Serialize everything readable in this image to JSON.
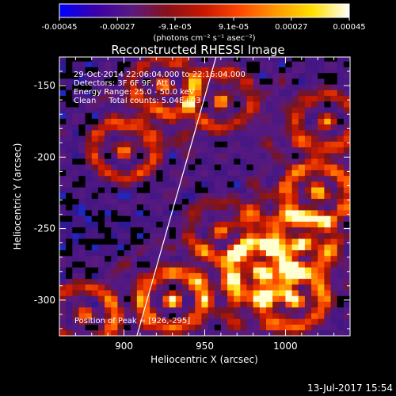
{
  "chart_data": {
    "type": "heatmap",
    "title": "Reconstructed RHESSI Image",
    "xlabel": "Heliocentric X (arcsec)",
    "ylabel": "Heliocentric Y (arcsec)",
    "xlim": [
      860,
      1040
    ],
    "ylim": [
      -325,
      -130
    ],
    "x_ticks": [
      {
        "value": 900,
        "label": "900"
      },
      {
        "value": 950,
        "label": "950"
      },
      {
        "value": 1000,
        "label": "1000"
      }
    ],
    "y_ticks": [
      {
        "value": -150,
        "label": "-150"
      },
      {
        "value": -200,
        "label": "-200"
      },
      {
        "value": -250,
        "label": "-250"
      },
      {
        "value": -300,
        "label": "-300"
      }
    ],
    "colorbar": {
      "range": [
        -0.00045,
        0.00045
      ],
      "ticks": [
        {
          "value": -0.00045,
          "label": "-0.00045"
        },
        {
          "value": -0.00027,
          "label": "-0.00027"
        },
        {
          "value": -9.1e-05,
          "label": "-9.1e-05"
        },
        {
          "value": 9.1e-05,
          "label": "9.1e-05"
        },
        {
          "value": 0.00027,
          "label": "0.00027"
        },
        {
          "value": 0.00045,
          "label": "0.00045"
        }
      ],
      "units": "(photons cm⁻² s⁻¹ asec⁻²)",
      "colors": [
        "#0000ff",
        "#3a00a8",
        "#5a1a80",
        "#8a1018",
        "#c81800",
        "#ff4a00",
        "#ff9a00",
        "#ffe000",
        "#ffffff"
      ]
    },
    "annotations": [
      "29-Oct-2014 22:06:04.000 to 22:16:04.000",
      "Detectors: 3F 6F 9F, Att 0",
      "Energy Range: 25.0 - 50.0 keV",
      "Clean     Total counts: 5.04E+03"
    ],
    "peak_label": "Position of Peak = [926,-295]",
    "peak": [
      926,
      -295
    ],
    "limb_line": [
      [
        908,
        -325
      ],
      [
        957,
        -130
      ]
    ],
    "bright_sources": [
      {
        "x": 900,
        "y": -195,
        "level": 0.85
      },
      {
        "x": 925,
        "y": -150,
        "level": 0.7
      },
      {
        "x": 960,
        "y": -160,
        "level": 0.75
      },
      {
        "x": 1025,
        "y": -175,
        "level": 0.8
      },
      {
        "x": 1020,
        "y": -225,
        "level": 0.9
      },
      {
        "x": 875,
        "y": -310,
        "level": 0.85
      },
      {
        "x": 930,
        "y": -300,
        "level": 1.0
      },
      {
        "x": 985,
        "y": -280,
        "level": 0.95
      },
      {
        "x": 1005,
        "y": -300,
        "level": 0.9
      },
      {
        "x": 1010,
        "y": -260,
        "level": 0.7
      },
      {
        "x": 960,
        "y": -250,
        "level": 0.6
      }
    ]
  },
  "footer": {
    "timestamp": "13-Jul-2017 15:54"
  }
}
